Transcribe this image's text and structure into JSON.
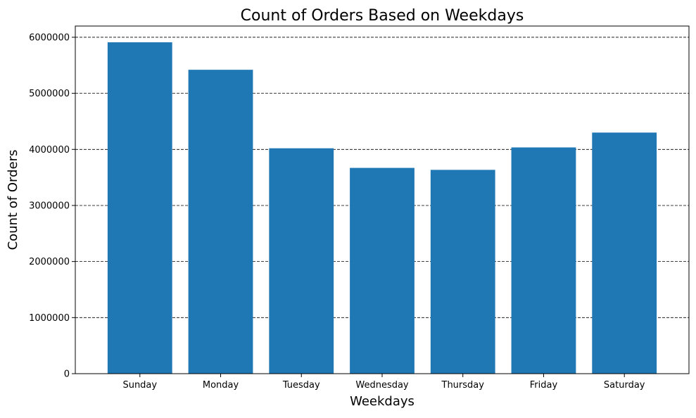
{
  "chart_data": {
    "type": "bar",
    "title": "Count of Orders Based on Weekdays",
    "xlabel": "Weekdays",
    "ylabel": "Count of Orders",
    "categories": [
      "Sunday",
      "Monday",
      "Tuesday",
      "Wednesday",
      "Thursday",
      "Friday",
      "Saturday"
    ],
    "values": [
      5910000,
      5420000,
      4020000,
      3670000,
      3635000,
      4035000,
      4300000
    ],
    "ylim": [
      0,
      6200000
    ],
    "yticks": [
      0,
      1000000,
      2000000,
      3000000,
      4000000,
      5000000,
      6000000
    ],
    "ytick_labels": [
      "0",
      "1000000",
      "2000000",
      "3000000",
      "4000000",
      "5000000",
      "6000000"
    ],
    "grid": "horizontal dashed",
    "legend": "none",
    "bar_color": "#1f77b4"
  }
}
